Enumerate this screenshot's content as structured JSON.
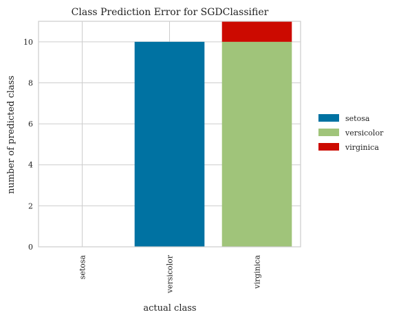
{
  "chart_data": {
    "type": "bar",
    "stacked": true,
    "title": "Class Prediction Error for SGDClassifier",
    "xlabel": "actual class",
    "ylabel": "number of predicted class",
    "categories": [
      "setosa",
      "versicolor",
      "virginica"
    ],
    "series": [
      {
        "name": "setosa",
        "color": "#0072a2",
        "values": [
          0,
          10,
          0
        ]
      },
      {
        "name": "versicolor",
        "color": "#a0c47a",
        "values": [
          0,
          0,
          10
        ]
      },
      {
        "name": "virginica",
        "color": "#cc0a00",
        "values": [
          0,
          0,
          1
        ]
      }
    ],
    "ylim": [
      0,
      11
    ],
    "yticks": [
      0,
      2,
      4,
      6,
      8,
      10
    ],
    "grid": true,
    "legend_position": "right"
  }
}
